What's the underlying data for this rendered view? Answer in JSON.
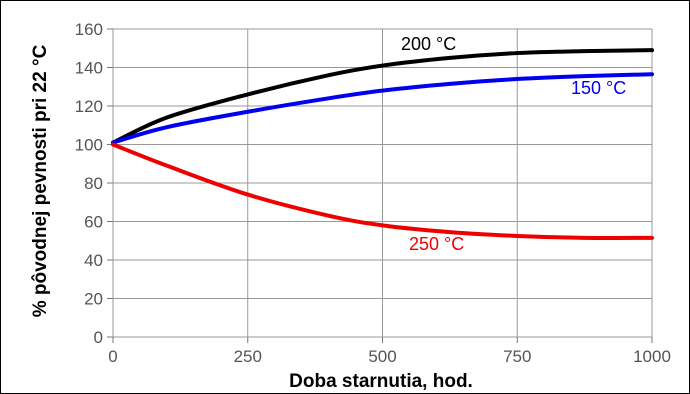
{
  "chart_data": {
    "type": "line",
    "title": "",
    "xlabel": "Doba starnutia, hod.",
    "ylabel": "% pôvodnej pevnosti pri 22 °C",
    "xlim": [
      0,
      1000
    ],
    "ylim": [
      0,
      160
    ],
    "x_ticks": [
      0,
      250,
      500,
      750,
      1000
    ],
    "y_ticks": [
      0,
      20,
      40,
      60,
      80,
      100,
      120,
      140,
      160
    ],
    "grid": true,
    "legend": "labels on curves",
    "series": [
      {
        "name": "200 °C",
        "color": "#000000",
        "x": [
          0,
          100,
          250,
          400,
          500,
          625,
          750,
          875,
          1000
        ],
        "y": [
          101,
          114,
          126,
          136,
          141,
          145,
          147.5,
          148.5,
          149
        ]
      },
      {
        "name": "150 °C",
        "color": "#0000ee",
        "x": [
          0,
          100,
          250,
          400,
          500,
          625,
          750,
          875,
          1000
        ],
        "y": [
          101,
          109,
          117,
          124,
          128,
          131.5,
          134,
          135.5,
          136.5
        ]
      },
      {
        "name": "250 °C",
        "color": "#ee0000",
        "x": [
          0,
          100,
          250,
          400,
          500,
          625,
          750,
          875,
          1000
        ],
        "y": [
          100,
          89,
          74,
          63,
          58,
          54.5,
          52.5,
          51.5,
          51.5
        ]
      }
    ]
  }
}
